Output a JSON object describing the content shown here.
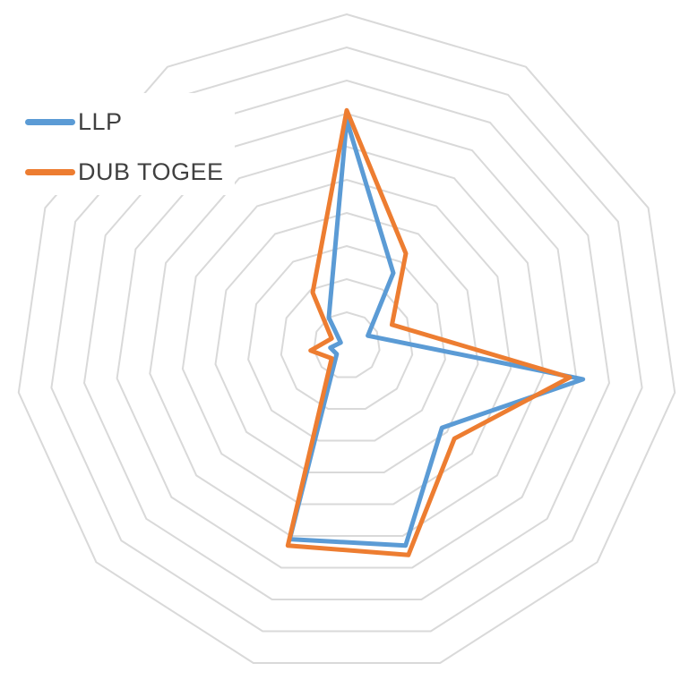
{
  "chart_data": {
    "type": "radar",
    "title": "",
    "axes_count": 11,
    "rings": 10,
    "ring_max": 10,
    "start_angle": "top",
    "direction": "clockwise",
    "grid_color": "#D9D9D9",
    "background_color": "#FFFFFF",
    "legend_position": "top-left",
    "series": [
      {
        "name": "LLP",
        "color": "#5B9BD5",
        "values": [
          6.8,
          2.6,
          0.7,
          7.2,
          3.8,
          6.3,
          6.1,
          0.4,
          0.5,
          0.2,
          1.0
        ]
      },
      {
        "name": "DUB TOGEE",
        "color": "#ED7D31",
        "values": [
          7.1,
          3.3,
          1.5,
          6.8,
          4.3,
          6.6,
          6.3,
          0.6,
          1.1,
          0.5,
          1.9
        ]
      }
    ]
  },
  "legend": {
    "items": [
      {
        "label": "LLP",
        "color": "#5B9BD5"
      },
      {
        "label": "DUB TOGEE",
        "color": "#ED7D31"
      }
    ]
  }
}
